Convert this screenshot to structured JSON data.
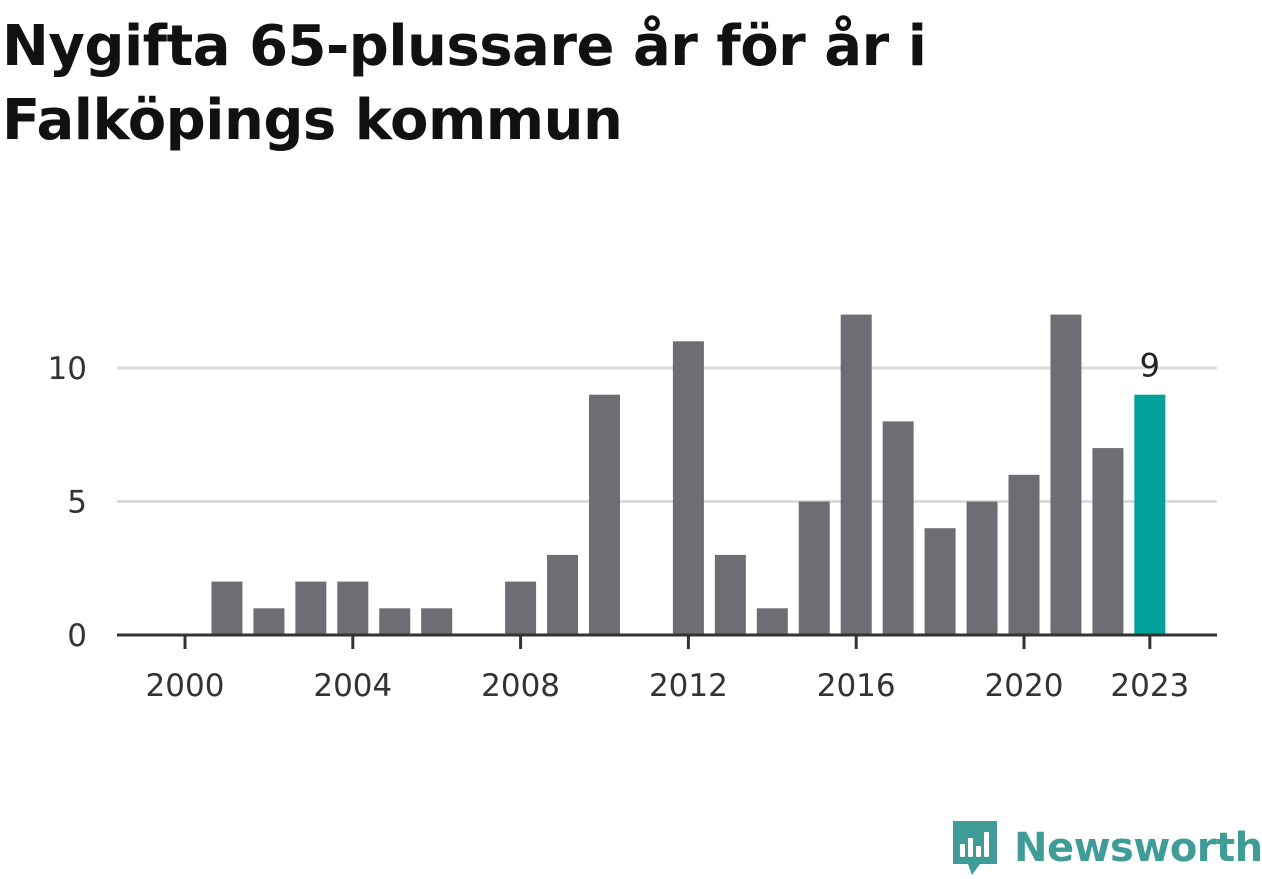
{
  "title": "Nygifta 65-plussare år för år i Falköpings kommun",
  "brand": {
    "name": "Newsworthy",
    "color": "#3f9c97"
  },
  "colors": {
    "bar": "#6e6d73",
    "highlight": "#00a19a",
    "grid": "#dcdcdc",
    "axis": "#333333"
  },
  "chart_data": {
    "type": "bar",
    "x": [
      2000,
      2001,
      2002,
      2003,
      2004,
      2005,
      2006,
      2007,
      2008,
      2009,
      2010,
      2011,
      2012,
      2013,
      2014,
      2015,
      2016,
      2017,
      2018,
      2019,
      2020,
      2021,
      2022,
      2023
    ],
    "values": [
      0,
      2,
      1,
      2,
      2,
      1,
      1,
      0,
      2,
      3,
      9,
      0,
      11,
      3,
      1,
      5,
      12,
      8,
      4,
      5,
      6,
      12,
      7,
      9
    ],
    "x_ticks": [
      "2000",
      "2004",
      "2008",
      "2012",
      "2016",
      "2020",
      "2023"
    ],
    "y_ticks": [
      "0",
      "5",
      "10"
    ],
    "ylim": [
      0,
      12
    ],
    "highlight": {
      "x": 2023,
      "label": "9"
    },
    "grid": true
  }
}
